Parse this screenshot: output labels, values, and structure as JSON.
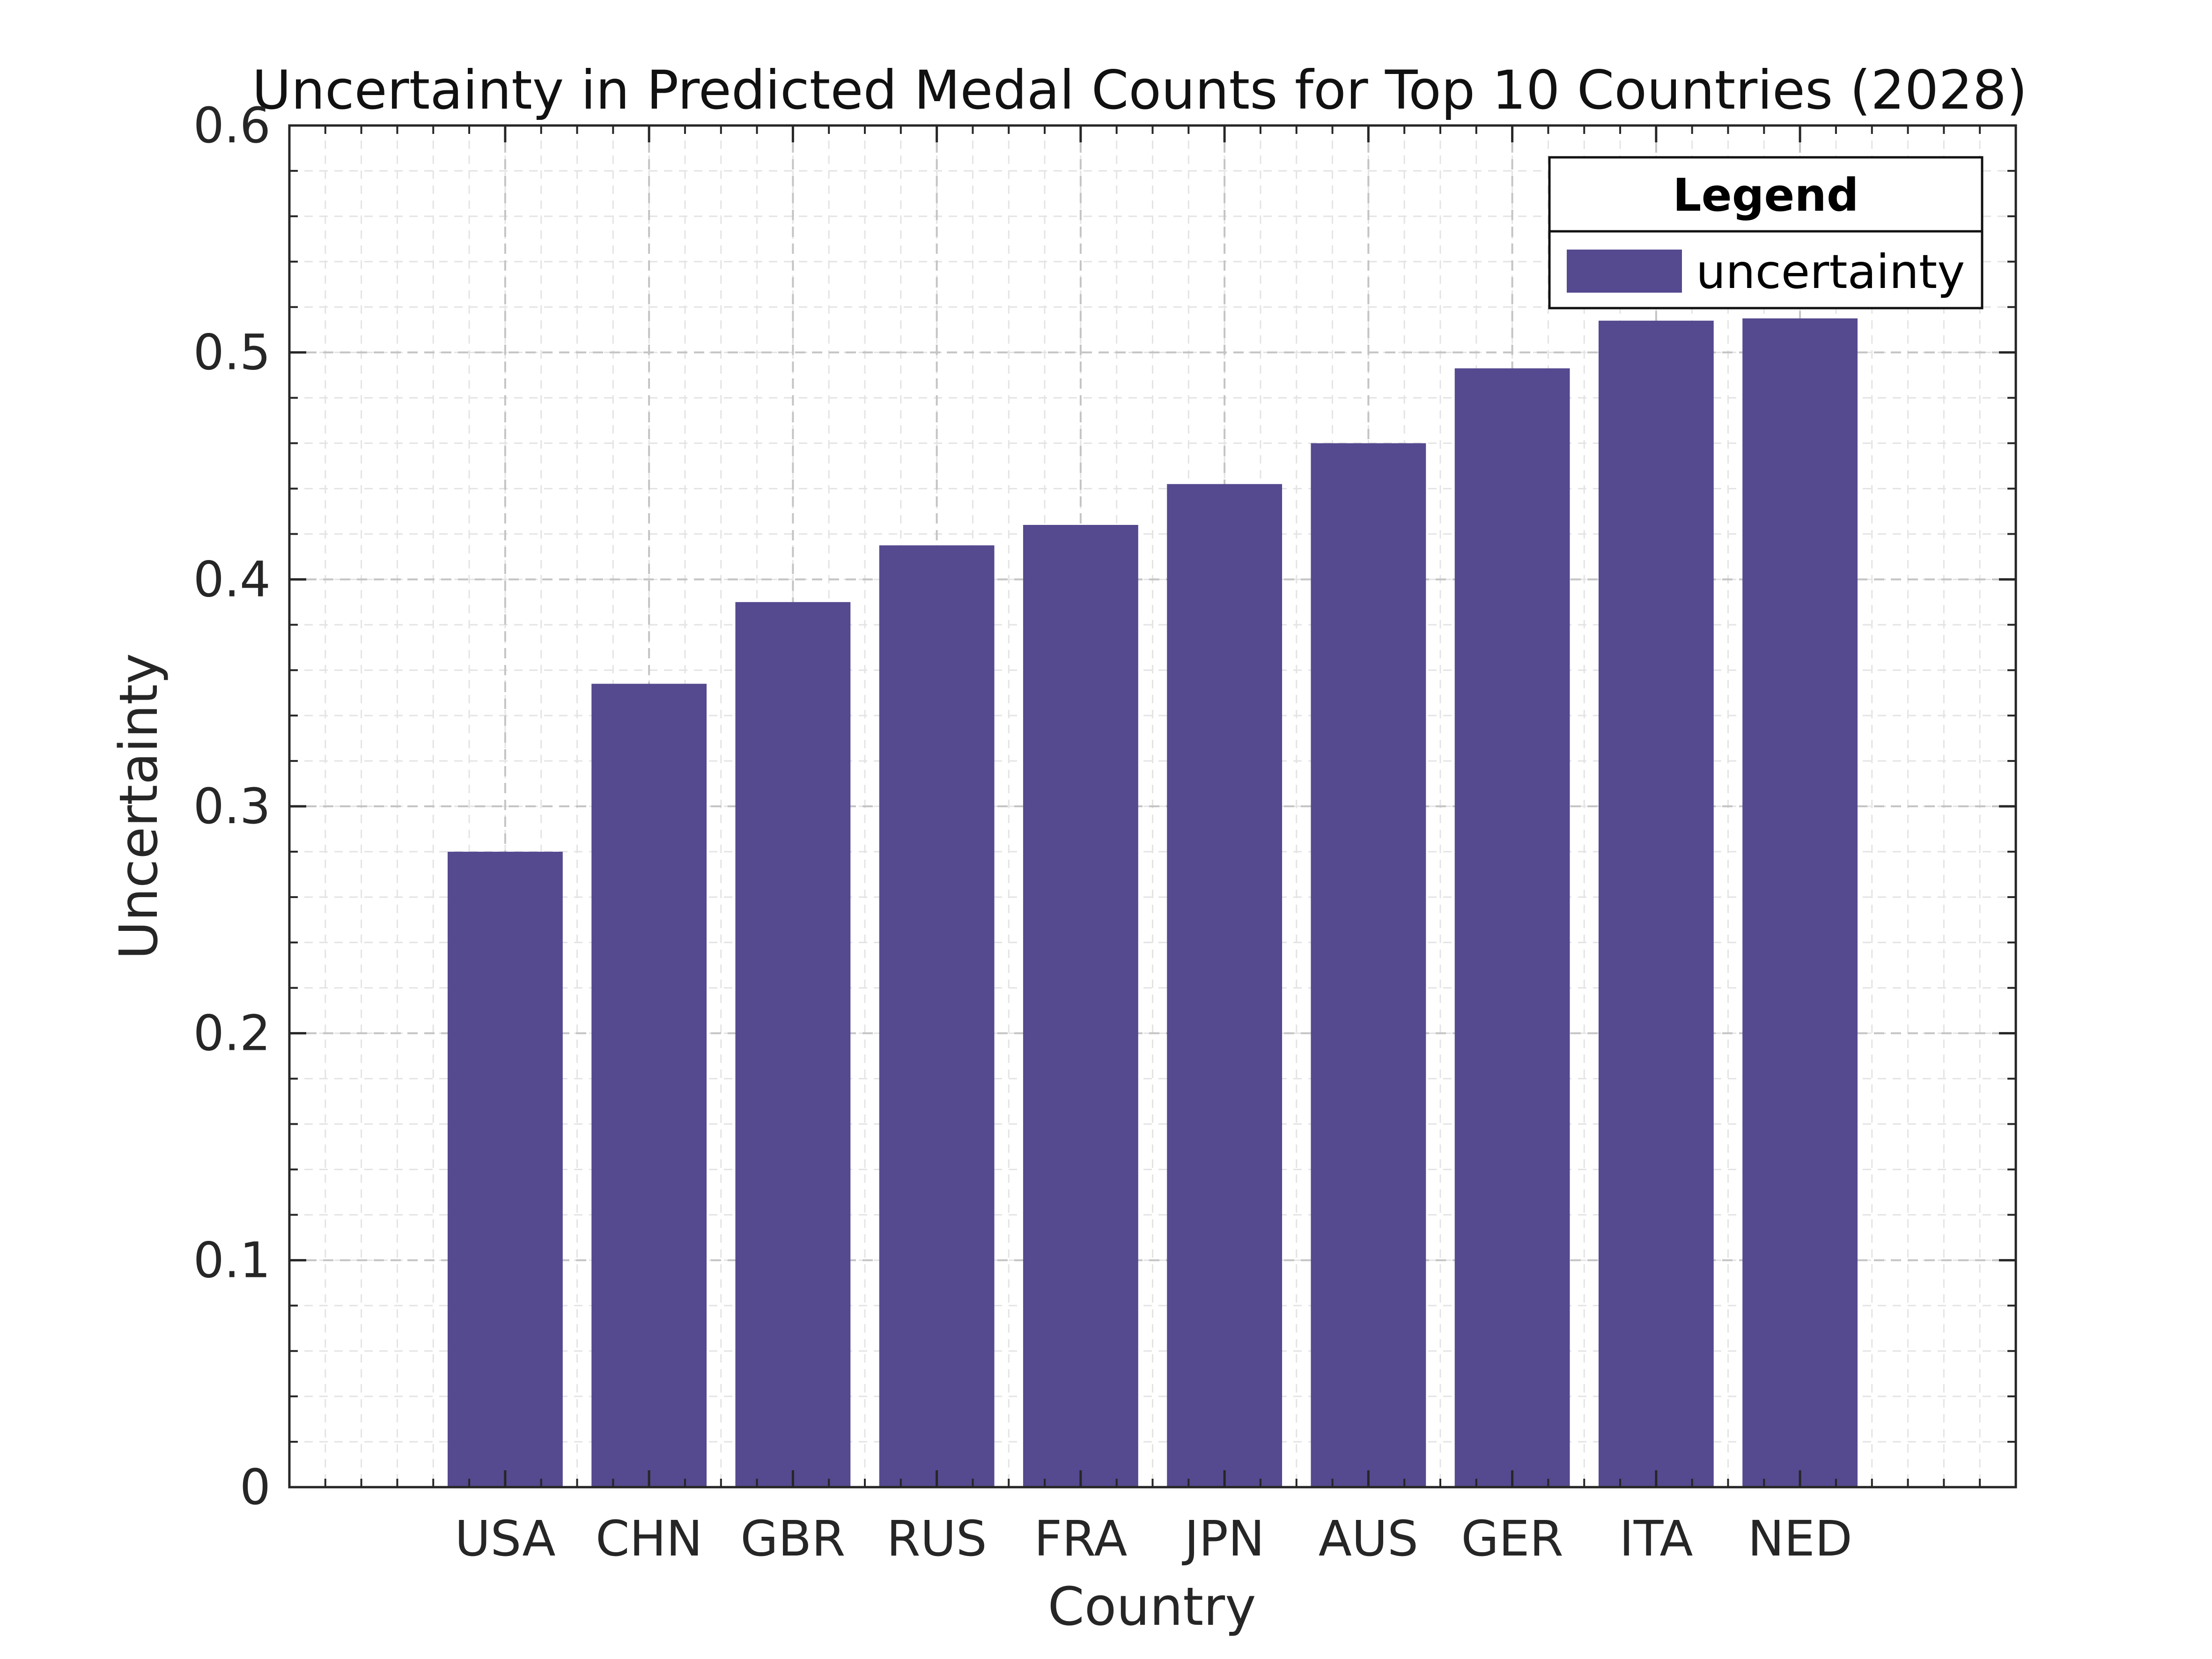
{
  "chart_data": {
    "type": "bar",
    "title": "Uncertainty in Predicted Medal Counts for Top 10 Countries (2028)",
    "xlabel": "Country",
    "ylabel": "Uncertainty",
    "categories": [
      "USA",
      "CHN",
      "GBR",
      "RUS",
      "FRA",
      "JPN",
      "AUS",
      "GER",
      "ITA",
      "NED"
    ],
    "series": [
      {
        "name": "uncertainty",
        "values": [
          0.28,
          0.354,
          0.39,
          0.415,
          0.424,
          0.442,
          0.46,
          0.493,
          0.514,
          0.515
        ],
        "color": "#55498f"
      }
    ],
    "ylim": [
      0,
      0.6
    ],
    "yticks": [
      0,
      0.1,
      0.2,
      0.3,
      0.4,
      0.5,
      0.6
    ],
    "ytick_labels": [
      "0",
      "0.1",
      "0.2",
      "0.3",
      "0.4",
      "0.5",
      "0.6"
    ],
    "grid": true,
    "legend": {
      "title": "Legend",
      "placement": "top-right"
    }
  }
}
